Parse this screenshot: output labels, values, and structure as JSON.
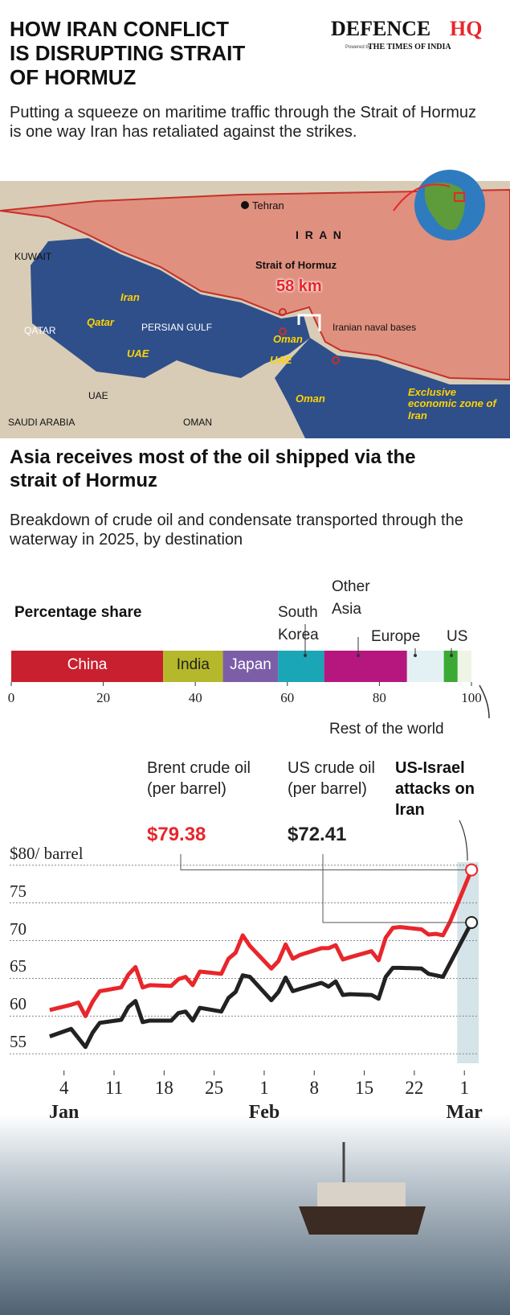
{
  "header": {
    "title": "HOW IRAN CONFLICT IS DISRUPTING STRAIT OF HORMUZ",
    "subtitle": "Putting a squeeze on maritime traffic through the Strait of Hormuz is one way Iran has retaliated against the strikes.",
    "logo": {
      "name_main": "DEFENCE",
      "name_accent": "HQ",
      "powered_by": "Powered by",
      "partner": "THE TIMES OF INDIA"
    }
  },
  "map": {
    "labels": [
      "Tehran",
      "I R A N",
      "KUWAIT",
      "Iran",
      "Qatar",
      "QATAR",
      "PERSIAN GULF",
      "UAE",
      "Strait of Hormuz",
      "58 km",
      "Oman",
      "Iranian naval bases",
      "UAE",
      "Oman",
      "Exclusive economic zone of Iran",
      "UAE",
      "SAUDI ARABIA",
      "OMAN"
    ]
  },
  "section": {
    "title": "Asia receives most of the oil shipped via the strait of Hormuz",
    "subtitle": "Breakdown of crude oil and condensate transported through the waterway in 2025, by destination"
  },
  "chart_data": [
    {
      "type": "stacked_bar",
      "axis_label": "Percentage share",
      "series": [
        {
          "name": "China",
          "color": "#c8202f",
          "values": [
            33
          ]
        },
        {
          "name": "India",
          "color": "#b5b82a",
          "values": [
            13
          ]
        },
        {
          "name": "Japan",
          "color": "#7b5ea7",
          "values": [
            12
          ]
        },
        {
          "name": "South Korea",
          "color": "#1aa6b7",
          "values": [
            10
          ]
        },
        {
          "name": "Other Asia",
          "color": "#b5177f",
          "values": [
            18
          ]
        },
        {
          "name": "Europe",
          "color": "#e3f1f4",
          "values": [
            8
          ]
        },
        {
          "name": "US",
          "color": "#3aaa35",
          "values": [
            3
          ]
        },
        {
          "name": "Rest of the world",
          "color": "#eef5e4",
          "values": [
            3
          ]
        }
      ],
      "xlim": [
        0,
        100
      ],
      "xticks": [
        0,
        20,
        40,
        60,
        80,
        100
      ]
    },
    {
      "type": "line",
      "x": [
        "Jan 2",
        "Jan 5",
        "Jan 6",
        "Jan 7",
        "Jan 8",
        "Jan 9",
        "Jan 12",
        "Jan 13",
        "Jan 14",
        "Jan 15",
        "Jan 16",
        "Jan 19",
        "Jan 20",
        "Jan 21",
        "Jan 22",
        "Jan 23",
        "Jan 26",
        "Jan 27",
        "Jan 28",
        "Jan 29",
        "Jan 30",
        "Feb 2",
        "Feb 3",
        "Feb 4",
        "Feb 5",
        "Feb 6",
        "Feb 9",
        "Feb 10",
        "Feb 11",
        "Feb 12",
        "Feb 13",
        "Feb 16",
        "Feb 17",
        "Feb 18",
        "Feb 19",
        "Feb 20",
        "Feb 23",
        "Feb 24",
        "Feb 25",
        "Feb 26",
        "Feb 27",
        "Mar 2"
      ],
      "series": [
        {
          "name": "Brent crude oil (per barrel)",
          "color": "#e8262b",
          "values": [
            60.8,
            61.5,
            61.8,
            60.0,
            61.9,
            63.3,
            63.8,
            65.5,
            66.5,
            63.8,
            64.1,
            64.0,
            64.9,
            65.2,
            64.1,
            65.9,
            65.6,
            67.6,
            68.4,
            70.7,
            69.3,
            66.3,
            67.3,
            69.5,
            67.6,
            68.1,
            69.0,
            69.0,
            69.4,
            67.5,
            67.8,
            68.6,
            67.4,
            70.4,
            71.7,
            71.8,
            71.5,
            70.8,
            70.9,
            70.7,
            72.5,
            79.38
          ],
          "value_labels": [
            null,
            null,
            null,
            null,
            null,
            null,
            null,
            null,
            null,
            null,
            null,
            null,
            null,
            null,
            null,
            null,
            null,
            null,
            null,
            null,
            null,
            null,
            null,
            null,
            null,
            null,
            null,
            null,
            null,
            null,
            null,
            null,
            null,
            null,
            null,
            null,
            null,
            null,
            null,
            null,
            null,
            "$79.38"
          ]
        },
        {
          "name": "US crude oil (per barrel)",
          "color": "#222222",
          "values": [
            57.3,
            58.3,
            57.1,
            55.9,
            57.8,
            59.1,
            59.5,
            61.2,
            62.0,
            59.2,
            59.4,
            59.4,
            60.4,
            60.6,
            59.4,
            61.1,
            60.6,
            62.4,
            63.2,
            65.4,
            65.2,
            62.1,
            63.2,
            65.1,
            63.3,
            63.6,
            64.4,
            63.9,
            64.6,
            62.8,
            62.9,
            62.8,
            62.3,
            65.2,
            66.4,
            66.4,
            66.3,
            65.6,
            65.4,
            65.2,
            67.0,
            72.41
          ],
          "value_labels": [
            null,
            null,
            null,
            null,
            null,
            null,
            null,
            null,
            null,
            null,
            null,
            null,
            null,
            null,
            null,
            null,
            null,
            null,
            null,
            null,
            null,
            null,
            null,
            null,
            null,
            null,
            null,
            null,
            null,
            null,
            null,
            null,
            null,
            null,
            null,
            null,
            null,
            null,
            null,
            null,
            null,
            "$72.41"
          ]
        }
      ],
      "xlim": [
        "Jan 1",
        "Mar 3"
      ],
      "xticks": [
        {
          "value": "Jan 4",
          "label": "4"
        },
        {
          "value": "Jan 11",
          "label": "11"
        },
        {
          "value": "Jan 18",
          "label": "18"
        },
        {
          "value": "Jan 25",
          "label": "25"
        },
        {
          "value": "Feb 1",
          "label": "1"
        },
        {
          "value": "Feb 8",
          "label": "8"
        },
        {
          "value": "Feb 15",
          "label": "15"
        },
        {
          "value": "Feb 22",
          "label": "22"
        },
        {
          "value": "Mar 1",
          "label": "1"
        }
      ],
      "xtick_groups": [
        {
          "value": "Jan 4",
          "label": "Jan"
        },
        {
          "value": "Feb 1",
          "label": "Feb"
        },
        {
          "value": "Mar 1",
          "label": "Mar"
        }
      ],
      "ylim": [
        53,
        82
      ],
      "yticks": [
        55,
        60,
        65,
        70,
        75,
        {
          "value": 80,
          "label": "$80/ barrel"
        }
      ],
      "grid": true,
      "event": {
        "label": "US-Israel attacks on Iran",
        "start": "Feb 28",
        "end": "Mar 3"
      }
    }
  ]
}
